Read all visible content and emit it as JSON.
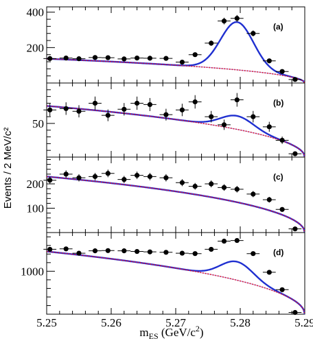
{
  "chart_data": {
    "type": "scatter",
    "ylabel": "Events / 2 MeV/c²",
    "xlabel_parts": {
      "main": "m",
      "sub": "ES",
      "rest": " (GeV/c",
      "sup": "2",
      "close": ")"
    },
    "xlim": [
      5.25,
      5.29
    ],
    "x_ticks": [
      5.25,
      5.26,
      5.27,
      5.28,
      5.29
    ],
    "x_tick_labels": [
      "5.25",
      "5.26",
      "5.27",
      "5.28",
      "5.29"
    ],
    "colors": {
      "points": "#000000",
      "total_fit": "#1f2fd0",
      "background": "#e0101a",
      "overlap": "#7a2ab8"
    },
    "panels": [
      {
        "label": "(a)",
        "ylim": [
          0,
          430
        ],
        "y_ticks": [
          200,
          400
        ],
        "y_tick_labels": [
          "200",
          "400"
        ],
        "x": [
          5.2505,
          5.253,
          5.255,
          5.2575,
          5.2595,
          5.262,
          5.264,
          5.266,
          5.2685,
          5.271,
          5.273,
          5.2755,
          5.2775,
          5.2795,
          5.282,
          5.2845,
          5.2865,
          5.2885
        ],
        "y": [
          138,
          141,
          137,
          144,
          143,
          136,
          141,
          140,
          139,
          118,
          160,
          225,
          350,
          365,
          280,
          125,
          65,
          20
        ],
        "signal": {
          "mean": 5.2795,
          "sigma": 0.00255,
          "amplitude": 270
        },
        "background": {
          "norm": 137,
          "chi": 4.4
        }
      },
      {
        "label": "(b)",
        "ylim": [
          0,
          110
        ],
        "y_ticks": [
          50
        ],
        "y_tick_labels": [
          "50"
        ],
        "x": [
          5.2505,
          5.253,
          5.255,
          5.2575,
          5.2595,
          5.262,
          5.264,
          5.266,
          5.2685,
          5.271,
          5.273,
          5.2755,
          5.2775,
          5.2795,
          5.282,
          5.2845,
          5.2865,
          5.2885
        ],
        "y": [
          70,
          72,
          68,
          80,
          62,
          71,
          80,
          78,
          63,
          70,
          82,
          60,
          48,
          85,
          60,
          45,
          25,
          5
        ],
        "signal": {
          "mean": 5.2795,
          "sigma": 0.00255,
          "amplitude": 20
        },
        "background": {
          "norm": 76,
          "chi": 4.4
        }
      },
      {
        "label": "(c)",
        "ylim": [
          0,
          310
        ],
        "y_ticks": [
          100,
          200
        ],
        "y_tick_labels": [
          "100",
          "200"
        ],
        "x": [
          5.2505,
          5.253,
          5.255,
          5.2575,
          5.2595,
          5.262,
          5.264,
          5.266,
          5.2685,
          5.271,
          5.273,
          5.2755,
          5.2775,
          5.2795,
          5.282,
          5.2845,
          5.2865,
          5.2885
        ],
        "y": [
          215,
          240,
          225,
          230,
          243,
          218,
          235,
          230,
          225,
          205,
          190,
          200,
          185,
          178,
          158,
          135,
          95,
          15
        ],
        "signal": {
          "mean": 5.2795,
          "sigma": 0.00255,
          "amplitude": 0
        },
        "background": {
          "norm": 230,
          "chi": 4.4
        }
      },
      {
        "label": "(d)",
        "ylim": [
          0,
          1900
        ],
        "y_ticks": [
          1000
        ],
        "y_tick_labels": [
          "1000"
        ],
        "x": [
          5.2505,
          5.253,
          5.255,
          5.2575,
          5.2595,
          5.262,
          5.264,
          5.266,
          5.2685,
          5.271,
          5.273,
          5.2755,
          5.2775,
          5.2795,
          5.282,
          5.2845,
          5.2865,
          5.2885
        ],
        "y": [
          1510,
          1520,
          1420,
          1475,
          1480,
          1475,
          1460,
          1450,
          1440,
          1420,
          1410,
          1510,
          1700,
          1715,
          1410,
          975,
          570,
          40
        ],
        "signal": {
          "mean": 5.2795,
          "sigma": 0.00255,
          "amplitude": 430
        },
        "background": {
          "norm": 1460,
          "chi": 4.4
        }
      }
    ]
  }
}
